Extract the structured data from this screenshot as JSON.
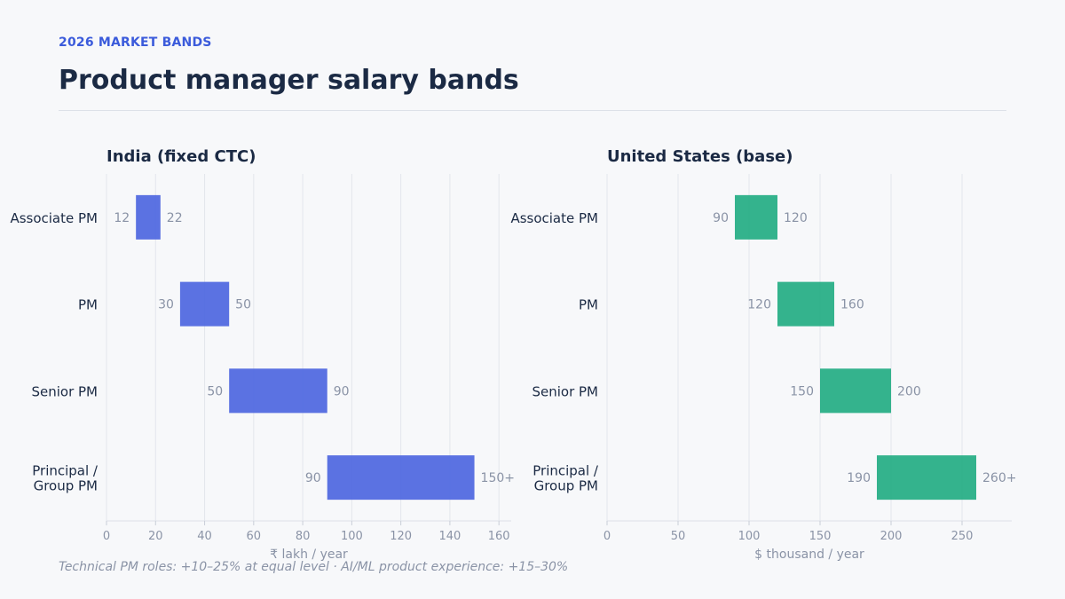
{
  "header": {
    "eyebrow": "2026 MARKET BANDS",
    "title": "Product manager salary bands"
  },
  "footnote": "Technical PM roles: +10–25% at equal level · AI/ML product experience: +15–30%",
  "chart_data": [
    {
      "type": "bar",
      "orientation": "horizontal-range",
      "title": "India (fixed CTC)",
      "xlabel": "₹ lakh / year",
      "categories": [
        [
          "Associate PM"
        ],
        [
          "PM"
        ],
        [
          "Senior PM"
        ],
        [
          "Principal /",
          "Group PM"
        ]
      ],
      "ranges": [
        [
          12,
          22
        ],
        [
          30,
          50
        ],
        [
          50,
          90
        ],
        [
          90,
          150
        ]
      ],
      "low_labels": [
        "12",
        "30",
        "50",
        "90"
      ],
      "high_labels": [
        "22",
        "50",
        "90",
        "150+"
      ],
      "xlim": [
        0,
        165
      ],
      "xticks": [
        0,
        20,
        40,
        60,
        80,
        100,
        120,
        140,
        160
      ],
      "color": "#4f67e0",
      "grid": true
    },
    {
      "type": "bar",
      "orientation": "horizontal-range",
      "title": "United States (base)",
      "xlabel": "$ thousand / year",
      "categories": [
        [
          "Associate PM"
        ],
        [
          "PM"
        ],
        [
          "Senior PM"
        ],
        [
          "Principal /",
          "Group PM"
        ]
      ],
      "ranges": [
        [
          90,
          120
        ],
        [
          120,
          160
        ],
        [
          150,
          200
        ],
        [
          190,
          260
        ]
      ],
      "low_labels": [
        "90",
        "120",
        "150",
        "190"
      ],
      "high_labels": [
        "120",
        "160",
        "200",
        "260+"
      ],
      "xlim": [
        0,
        285
      ],
      "xticks": [
        0,
        50,
        100,
        150,
        200,
        250
      ],
      "color": "#25ad84",
      "grid": true
    }
  ]
}
